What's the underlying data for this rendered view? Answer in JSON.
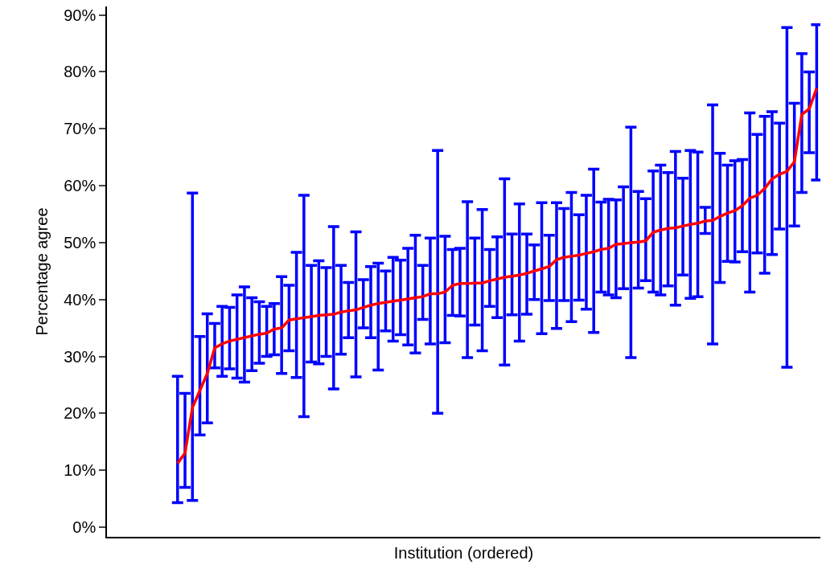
{
  "chart_data": {
    "type": "line",
    "xlabel": "Institution (ordered)",
    "ylabel": "Percentage agree",
    "categories": [
      null,
      null,
      null,
      null,
      null,
      null,
      null,
      null,
      null,
      null,
      null,
      null,
      null,
      null,
      null,
      null,
      null,
      null,
      null,
      null,
      null,
      null,
      null,
      null,
      null,
      null,
      null,
      null,
      null,
      null,
      null,
      null,
      null,
      null,
      null,
      null,
      null,
      null,
      null,
      null,
      null,
      null,
      null,
      null,
      null,
      null,
      null,
      null,
      null,
      null,
      null,
      null,
      null,
      null,
      null,
      null,
      null,
      null,
      null,
      null,
      null,
      null,
      null,
      null,
      null,
      null,
      null,
      null,
      null,
      null,
      null,
      null,
      null,
      null,
      null,
      null,
      null,
      null,
      null,
      null,
      null,
      null,
      null,
      null,
      null,
      null,
      null
    ],
    "color": "#0000ff",
    "series": [
      {
        "color": "#ff0000",
        "values": [
          11.2,
          13,
          21,
          24,
          27,
          31.5,
          32.2,
          32.7,
          33,
          33.3,
          33.6,
          33.9,
          34.1,
          34.8,
          35,
          36.4,
          36.6,
          36.8,
          37,
          37.2,
          37.3,
          37.4,
          37.8,
          38,
          38.2,
          38.6,
          39,
          39.3,
          39.5,
          39.7,
          39.9,
          40.1,
          40.3,
          40.5,
          41,
          41,
          41.3,
          42.5,
          42.8,
          42.8,
          42.9,
          42.9,
          43.3,
          43.6,
          43.9,
          44.1,
          44.3,
          44.6,
          45,
          45.4,
          45.8,
          47,
          47.4,
          47.6,
          47.8,
          48.1,
          48.4,
          48.8,
          49,
          49.7,
          49.8,
          50,
          50.1,
          50.3,
          51.8,
          52.2,
          52.5,
          52.6,
          52.9,
          53.2,
          53.4,
          53.8,
          53.9,
          54.6,
          55.2,
          55.6,
          56.5,
          57.8,
          58.3,
          59.5,
          61.2,
          62,
          62.5,
          64.2,
          72.5,
          73.5,
          77.1
        ],
        "errors": [
          [
            4.3,
            26.5
          ],
          [
            7,
            23.5
          ],
          [
            4.7,
            58.7
          ],
          [
            16.2,
            33.5
          ],
          [
            18.3,
            37.5
          ],
          [
            28,
            35.8
          ],
          [
            26.5,
            38.8
          ],
          [
            27.8,
            38.6
          ],
          [
            26.2,
            40.8
          ],
          [
            25.5,
            42.2
          ],
          [
            27.5,
            40.3
          ],
          [
            28.8,
            39.6
          ],
          [
            30,
            38.8
          ],
          [
            30.3,
            39.3
          ],
          [
            27,
            44
          ],
          [
            31,
            42.5
          ],
          [
            26.3,
            48.3
          ],
          [
            19.4,
            58.3
          ],
          [
            29,
            46
          ],
          [
            28.7,
            46.8
          ],
          [
            30,
            45.6
          ],
          [
            24.3,
            52.8
          ],
          [
            30.4,
            46
          ],
          [
            33.3,
            43
          ],
          [
            26.4,
            51.9
          ],
          [
            35,
            43.5
          ],
          [
            33.3,
            45.8
          ],
          [
            27.6,
            46.4
          ],
          [
            34.5,
            45
          ],
          [
            32.7,
            47.4
          ],
          [
            33.8,
            46.9
          ],
          [
            32,
            49
          ],
          [
            30.6,
            51.3
          ],
          [
            36.5,
            46
          ],
          [
            32.2,
            50.8
          ],
          [
            20,
            66.2
          ],
          [
            32.4,
            51.1
          ],
          [
            37.2,
            48.8
          ],
          [
            37.1,
            49
          ],
          [
            29.8,
            57.2
          ],
          [
            35.5,
            50.8
          ],
          [
            31,
            55.8
          ],
          [
            38.8,
            48.8
          ],
          [
            36.8,
            51
          ],
          [
            28.5,
            61.2
          ],
          [
            37.3,
            51.5
          ],
          [
            32.7,
            56.8
          ],
          [
            37.4,
            51.5
          ],
          [
            40,
            49.6
          ],
          [
            34,
            57
          ],
          [
            39.8,
            51.3
          ],
          [
            34.9,
            57
          ],
          [
            39.8,
            56
          ],
          [
            36.1,
            58.8
          ],
          [
            39.9,
            54.9
          ],
          [
            38.3,
            58.3
          ],
          [
            34.2,
            62.9
          ],
          [
            41.3,
            57.1
          ],
          [
            40.8,
            57.6
          ],
          [
            40.3,
            57.5
          ],
          [
            41.9,
            59.8
          ],
          [
            29.8,
            70.3
          ],
          [
            42,
            59
          ],
          [
            43.3,
            57.7
          ],
          [
            41.3,
            62.6
          ],
          [
            40.8,
            63.6
          ],
          [
            42.4,
            62.3
          ],
          [
            39,
            66
          ],
          [
            44.3,
            61.3
          ],
          [
            40.2,
            66.2
          ],
          [
            40.5,
            65.9
          ],
          [
            51.6,
            56.2
          ],
          [
            32.2,
            74.2
          ],
          [
            43,
            65.7
          ],
          [
            46.7,
            63.6
          ],
          [
            46.6,
            64.4
          ],
          [
            48.4,
            64.6
          ],
          [
            41.3,
            72.8
          ],
          [
            48.2,
            69
          ],
          [
            44.6,
            72.2
          ],
          [
            47.9,
            73
          ],
          [
            52.4,
            71
          ],
          [
            28.1,
            87.8
          ],
          [
            52.9,
            74.5
          ],
          [
            58.8,
            83.2
          ],
          [
            65.8,
            80
          ],
          [
            61,
            88.3
          ]
        ]
      }
    ],
    "ylim": [
      -1.7,
      91.5
    ],
    "yticks": [
      {
        "value": 0,
        "label": "0%"
      },
      {
        "value": 10,
        "label": "10%"
      },
      {
        "value": 20,
        "label": "20%"
      },
      {
        "value": 30,
        "label": "30%"
      },
      {
        "value": 40,
        "label": "40%"
      },
      {
        "value": 50,
        "label": "50%"
      },
      {
        "value": 60,
        "label": "60%"
      },
      {
        "value": 70,
        "label": "70%"
      },
      {
        "value": 80,
        "label": "80%"
      },
      {
        "value": 90,
        "label": "90%"
      }
    ],
    "tick_labels": "y",
    "grid": false,
    "marker": "none",
    "line_style": "solid"
  }
}
